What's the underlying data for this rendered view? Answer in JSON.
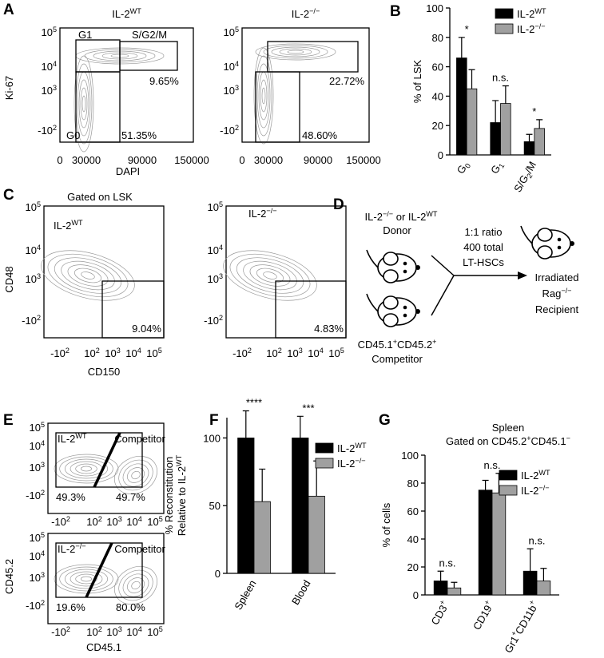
{
  "panelA": {
    "letter": "A",
    "plots": [
      {
        "title": [
          "IL-2",
          {
            "sup": "WT"
          }
        ],
        "gates": [
          "G1",
          "S/G2/M",
          "G0"
        ],
        "percents": [
          "9.65%",
          "51.35%"
        ]
      },
      {
        "title": [
          "IL-2",
          {
            "sup": "−/−"
          }
        ],
        "percents": [
          "22.72%",
          "48.60%"
        ]
      }
    ],
    "ylabel": "Ki-67",
    "xlabel": "DAPI",
    "xticks": [
      "0",
      "30000",
      "90000",
      "150000"
    ],
    "yticks": [
      [
        "10",
        {
          "sup": "5"
        }
      ],
      [
        "10",
        {
          "sup": "4"
        }
      ],
      [
        "10",
        {
          "sup": "3"
        }
      ],
      [
        "-10",
        {
          "sup": "2"
        }
      ]
    ]
  },
  "panelC": {
    "letter": "C",
    "subtitle": "Gated on LSK",
    "plots": [
      {
        "title": [
          "IL-2",
          {
            "sup": "WT"
          }
        ],
        "percent": "9.04%"
      },
      {
        "title": [
          "IL-2",
          {
            "sup": "−/−"
          }
        ],
        "percent": "4.83%"
      }
    ],
    "ylabel": "CD48",
    "xlabel": "CD150",
    "xticks": [
      [
        "-10",
        {
          "sup": "2"
        }
      ],
      [
        "10",
        {
          "sup": "2"
        }
      ],
      [
        "10",
        {
          "sup": "3"
        }
      ],
      [
        "10",
        {
          "sup": "4"
        }
      ],
      [
        "10",
        {
          "sup": "5"
        }
      ]
    ],
    "yticks": [
      [
        "10",
        {
          "sup": "5"
        }
      ],
      [
        "10",
        {
          "sup": "4"
        }
      ],
      [
        "10",
        {
          "sup": "3"
        }
      ],
      [
        "-10",
        {
          "sup": "2"
        }
      ]
    ]
  },
  "panelD": {
    "letter": "D",
    "donor": [
      "IL-2",
      {
        "sup": "−/−"
      },
      " or IL-2",
      {
        "sup": "WT"
      }
    ],
    "donor_label": "Donor",
    "transfer": [
      "1:1 ratio",
      "400 total",
      "LT-HSCs"
    ],
    "competitor": [
      "CD45.1",
      {
        "sup": "+"
      },
      "CD45.2",
      {
        "sup": "+"
      }
    ],
    "competitor_label": "Competitor",
    "recipient": [
      "Irradiated",
      [
        "Rag",
        {
          "sup": "−/−"
        }
      ],
      "Recipient"
    ]
  },
  "panelE": {
    "letter": "E",
    "plots": [
      {
        "title": [
          "IL-2",
          {
            "sup": "WT"
          }
        ],
        "gate": "Competitor",
        "percents": [
          "49.3%",
          "49.7%"
        ]
      },
      {
        "title": [
          "IL-2",
          {
            "sup": "−/−"
          }
        ],
        "gate": "Competitor",
        "percents": [
          "19.6%",
          "80.0%"
        ]
      }
    ],
    "ylabel": "CD45.2",
    "xlabel": "CD45.1",
    "xticks": [
      [
        "-10",
        {
          "sup": "2"
        }
      ],
      [
        "10",
        {
          "sup": "2"
        }
      ],
      [
        "10",
        {
          "sup": "3"
        }
      ],
      [
        "10",
        {
          "sup": "4"
        }
      ],
      [
        "10",
        {
          "sup": "5"
        }
      ]
    ],
    "yticks": [
      [
        "10",
        {
          "sup": "5"
        }
      ],
      [
        "10",
        {
          "sup": "4"
        }
      ],
      [
        "10",
        {
          "sup": "3"
        }
      ],
      [
        "-10",
        {
          "sup": "2"
        }
      ]
    ]
  },
  "chart_data": [
    {
      "type": "bar",
      "letter": "B",
      "ylabel": "% of LSK",
      "categories": [
        [
          "G",
          {
            "sub": "0"
          }
        ],
        [
          "G",
          {
            "sub": "1"
          }
        ],
        [
          "S/G",
          {
            "sub": "2"
          },
          "/M"
        ]
      ],
      "series": [
        {
          "name": [
            "IL-2",
            {
              "sup": "WT"
            }
          ],
          "color": "#000000",
          "values": [
            66,
            22,
            9
          ],
          "errors": [
            14,
            15,
            5
          ]
        },
        {
          "name": [
            "IL-2",
            {
              "sup": "−/−"
            }
          ],
          "color": "#a0a0a0",
          "values": [
            45,
            35,
            18
          ],
          "errors": [
            13,
            12,
            6
          ]
        }
      ],
      "annotations": [
        "*",
        "n.s.",
        "*"
      ],
      "ylim": [
        0,
        100
      ],
      "yticks": [
        0,
        20,
        40,
        60,
        80,
        100
      ]
    },
    {
      "type": "bar",
      "letter": "F",
      "ylabel": "% Reconstitution",
      "ylabel2": [
        "Relative to IL-2",
        {
          "sup": "WT"
        }
      ],
      "categories": [
        "Spleen",
        "Blood"
      ],
      "series": [
        {
          "name": [
            "IL-2",
            {
              "sup": "WT"
            }
          ],
          "color": "#000000",
          "values": [
            100,
            100
          ],
          "errors": [
            20,
            16
          ]
        },
        {
          "name": [
            "IL-2",
            {
              "sup": "−/−"
            }
          ],
          "color": "#a0a0a0",
          "values": [
            53,
            57
          ],
          "errors": [
            24,
            26
          ]
        }
      ],
      "annotations": [
        "****",
        "***"
      ],
      "ylim": [
        0,
        115
      ],
      "yticks": [
        0,
        50,
        100
      ]
    },
    {
      "type": "bar",
      "letter": "G",
      "title": "Spleen",
      "subtitle": [
        "Gated on CD45.2",
        {
          "sup": "+"
        },
        "CD45.1",
        {
          "sup": "−"
        }
      ],
      "ylabel": "% of cells",
      "categories": [
        [
          "CD3",
          {
            "sup": "+"
          }
        ],
        [
          "CD19",
          {
            "sup": "+"
          }
        ],
        [
          "Gr1",
          {
            "sup": "+"
          },
          "CD11b",
          {
            "sup": "+"
          }
        ]
      ],
      "series": [
        {
          "name": [
            "IL-2",
            {
              "sup": "WT"
            }
          ],
          "color": "#000000",
          "values": [
            10,
            75,
            17
          ],
          "errors": [
            7,
            7,
            16
          ]
        },
        {
          "name": [
            "IL-2",
            {
              "sup": "−/−"
            }
          ],
          "color": "#a0a0a0",
          "values": [
            5,
            73,
            10
          ],
          "errors": [
            4,
            14,
            9
          ]
        }
      ],
      "annotations": [
        "n.s.",
        "n.s.",
        "n.s."
      ],
      "ylim": [
        0,
        100
      ],
      "yticks": [
        0,
        20,
        40,
        60,
        80,
        100
      ]
    }
  ]
}
